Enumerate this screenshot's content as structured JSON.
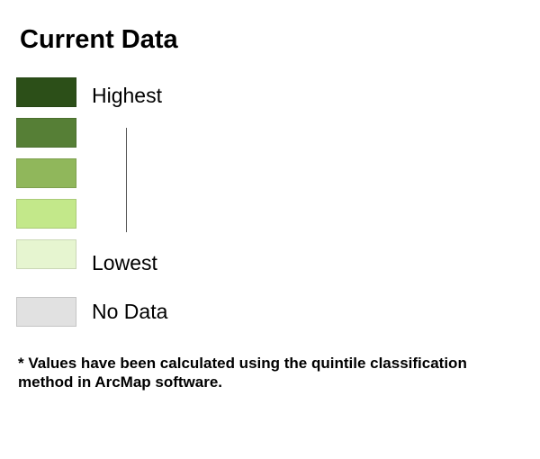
{
  "title": "Current Data",
  "legend": {
    "classes": [
      {
        "color": "#2c4f18"
      },
      {
        "color": "#567f36"
      },
      {
        "color": "#90b75b"
      },
      {
        "color": "#c3e88a"
      },
      {
        "color": "#e6f5d0"
      }
    ],
    "highest_label": "Highest",
    "lowest_label": "Lowest",
    "no_data": {
      "label": "No Data",
      "color": "#e1e1e1"
    }
  },
  "note": "* Values have been calculated using the quintile classification method in ArcMap software."
}
